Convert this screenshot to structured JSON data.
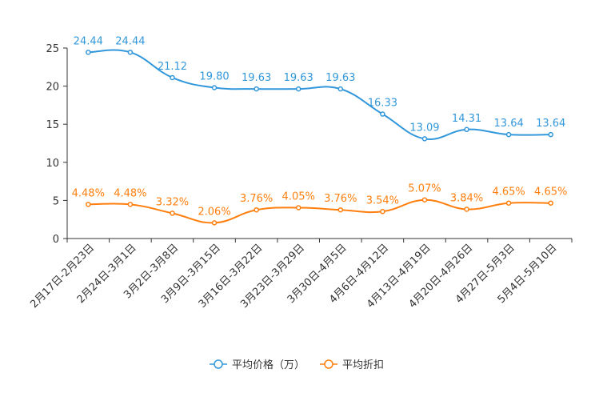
{
  "chart_data": {
    "type": "line",
    "categories": [
      "2月17日-2月23日",
      "2月24日-3月1日",
      "3月2日-3月8日",
      "3月9日-3月15日",
      "3月16日-3月22日",
      "3月23日-3月29日",
      "3月30日-4月5日",
      "4月6日-4月12日",
      "4月13日-4月19日",
      "4月20日-4月26日",
      "4月27日-5月3日",
      "5月4日-5月10日"
    ],
    "ylim": [
      0,
      25
    ],
    "yticks": [
      0,
      5,
      10,
      15,
      20,
      25
    ],
    "series": [
      {
        "name": "平均价格（万）",
        "color": "#3398DB",
        "values": [
          24.44,
          24.44,
          21.12,
          19.8,
          19.63,
          19.63,
          19.63,
          16.33,
          13.09,
          14.31,
          13.64,
          13.64
        ],
        "labels": [
          "24.44",
          "24.44",
          "21.12",
          "19.80",
          "19.63",
          "19.63",
          "19.63",
          "16.33",
          "13.09",
          "14.31",
          "13.64",
          "13.64"
        ]
      },
      {
        "name": "平均折扣",
        "color": "#FF7F0E",
        "values": [
          4.48,
          4.48,
          3.32,
          2.06,
          3.76,
          4.05,
          3.76,
          3.54,
          5.07,
          3.84,
          4.65,
          4.65
        ],
        "labels": [
          "4.48%",
          "4.48%",
          "3.32%",
          "2.06%",
          "3.76%",
          "4.05%",
          "3.76%",
          "3.54%",
          "5.07%",
          "3.84%",
          "4.65%",
          "4.65%"
        ]
      }
    ],
    "legend_position": "bottom-center"
  }
}
